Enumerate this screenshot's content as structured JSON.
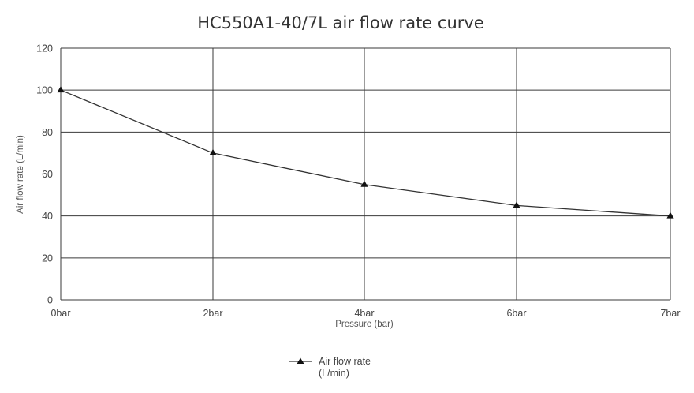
{
  "chart_data": {
    "type": "line",
    "title": "HC550A1-40/7L air flow rate curve",
    "xlabel": "Pressure (bar)",
    "ylabel": "Air flow rate (L/min)",
    "categories": [
      "0bar",
      "2bar",
      "4bar",
      "6bar",
      "7bar"
    ],
    "ylim": [
      0,
      120
    ],
    "yticks": [
      0,
      20,
      40,
      60,
      80,
      100,
      120
    ],
    "grid": true,
    "legend_position": "bottom",
    "series": [
      {
        "name": "Air flow rate (L/min)",
        "legend_lines": [
          "Air flow rate",
          "(L/min)"
        ],
        "marker": "triangle",
        "color": "#333333",
        "values": [
          100,
          70,
          55,
          45,
          40
        ]
      }
    ]
  }
}
